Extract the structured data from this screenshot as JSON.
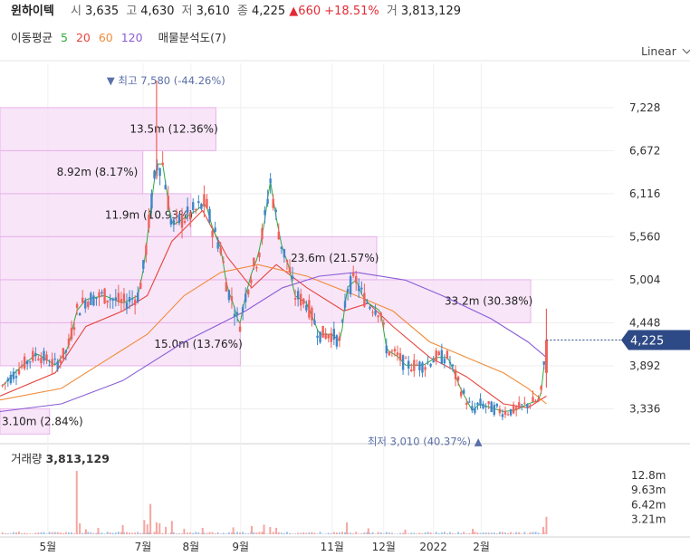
{
  "header": {
    "name": "윈하이텍",
    "open_label": "시",
    "open": "3,635",
    "high_label": "고",
    "high": "4,630",
    "low_label": "저",
    "low": "3,610",
    "close_label": "종",
    "close": "4,225",
    "change": "▲660",
    "change_pct": "+18.51%",
    "volume_label": "거",
    "volume": "3,813,129"
  },
  "ma_legend": {
    "label": "이동평균",
    "periods": [
      "5",
      "20",
      "60",
      "120"
    ],
    "colors": [
      "#2eaa3c",
      "#e8453c",
      "#f08c3a",
      "#8b5cd6"
    ],
    "volume_profile": "매물분석도(7)"
  },
  "scale_menu": "Linear",
  "chart_data": [
    {
      "type": "candlestick",
      "title": "",
      "y_ticks": [
        7228,
        6672,
        6116,
        5560,
        5004,
        4448,
        3892,
        3336
      ],
      "y_tick_labels": [
        "7,228",
        "6,672",
        "6,116",
        "5,560",
        "5,004",
        "4,448",
        "3,892",
        "3,336"
      ],
      "ylim": [
        2920,
        7800
      ],
      "x_ticks": [
        "5월",
        "7월",
        "8월",
        "9월",
        "11월",
        "12월",
        "2022",
        "2월"
      ],
      "x_tick_pos": [
        0.078,
        0.233,
        0.311,
        0.392,
        0.541,
        0.625,
        0.706,
        0.784
      ],
      "current_price": "4,225",
      "current_value": 4225,
      "max_annotation": "▼ 최고 7,580 (-44.26%)",
      "max_value": 7580,
      "min_annotation": "최저 3,010 (40.37%) ▲",
      "min_value": 3010,
      "volume_profile": [
        {
          "label": "3.10m (2.84%)",
          "low": 3010,
          "high": 3336,
          "share": 2.84
        },
        {
          "label": "15.0m (13.76%)",
          "low": 3892,
          "high": 4448,
          "share": 13.76
        },
        {
          "label": "33.2m (30.38%)",
          "low": 4448,
          "high": 5004,
          "share": 30.38
        },
        {
          "label": "23.6m (21.57%)",
          "low": 5004,
          "high": 5560,
          "share": 21.57
        },
        {
          "label": "11.9m (10.93%)",
          "low": 5560,
          "high": 6116,
          "share": 10.93
        },
        {
          "label": "8.92m (8.17%)",
          "low": 6116,
          "high": 6672,
          "share": 8.17
        },
        {
          "label": "13.5m (12.36%)",
          "low": 6672,
          "high": 7228,
          "share": 12.36
        }
      ],
      "price_path": [
        [
          0.0,
          3600
        ],
        [
          0.03,
          3850
        ],
        [
          0.06,
          4050
        ],
        [
          0.09,
          3900
        ],
        [
          0.11,
          4100
        ],
        [
          0.125,
          4600
        ],
        [
          0.14,
          4750
        ],
        [
          0.17,
          4800
        ],
        [
          0.2,
          4700
        ],
        [
          0.225,
          4800
        ],
        [
          0.235,
          5200
        ],
        [
          0.245,
          5900
        ],
        [
          0.255,
          6500
        ],
        [
          0.265,
          6500
        ],
        [
          0.28,
          5700
        ],
        [
          0.3,
          5800
        ],
        [
          0.32,
          5900
        ],
        [
          0.335,
          6000
        ],
        [
          0.345,
          5700
        ],
        [
          0.36,
          5400
        ],
        [
          0.37,
          4900
        ],
        [
          0.38,
          4700
        ],
        [
          0.39,
          4400
        ],
        [
          0.4,
          4800
        ],
        [
          0.41,
          5100
        ],
        [
          0.42,
          5300
        ],
        [
          0.43,
          5700
        ],
        [
          0.44,
          6300
        ],
        [
          0.45,
          5800
        ],
        [
          0.46,
          5400
        ],
        [
          0.47,
          5200
        ],
        [
          0.48,
          4800
        ],
        [
          0.5,
          4700
        ],
        [
          0.52,
          4300
        ],
        [
          0.54,
          4300
        ],
        [
          0.555,
          4200
        ],
        [
          0.565,
          4900
        ],
        [
          0.58,
          5000
        ],
        [
          0.59,
          4800
        ],
        [
          0.6,
          4700
        ],
        [
          0.62,
          4600
        ],
        [
          0.63,
          4100
        ],
        [
          0.65,
          4000
        ],
        [
          0.66,
          3900
        ],
        [
          0.69,
          3900
        ],
        [
          0.71,
          4000
        ],
        [
          0.73,
          4000
        ],
        [
          0.74,
          3800
        ],
        [
          0.75,
          3600
        ],
        [
          0.77,
          3300
        ],
        [
          0.78,
          3400
        ],
        [
          0.8,
          3350
        ],
        [
          0.82,
          3300
        ],
        [
          0.84,
          3320
        ],
        [
          0.86,
          3400
        ],
        [
          0.88,
          3450
        ],
        [
          0.885,
          3800
        ],
        [
          0.89,
          4225
        ]
      ],
      "ma": [
        {
          "period": "20",
          "path": [
            [
              0.0,
              3500
            ],
            [
              0.09,
              3800
            ],
            [
              0.14,
              4400
            ],
            [
              0.2,
              4600
            ],
            [
              0.24,
              4800
            ],
            [
              0.28,
              5500
            ],
            [
              0.33,
              5900
            ],
            [
              0.37,
              5300
            ],
            [
              0.41,
              4900
            ],
            [
              0.45,
              5200
            ],
            [
              0.5,
              4900
            ],
            [
              0.56,
              4600
            ],
            [
              0.6,
              4700
            ],
            [
              0.64,
              4400
            ],
            [
              0.7,
              4000
            ],
            [
              0.76,
              3750
            ],
            [
              0.82,
              3400
            ],
            [
              0.86,
              3350
            ],
            [
              0.89,
              3500
            ]
          ]
        },
        {
          "period": "60",
          "path": [
            [
              0.0,
              3450
            ],
            [
              0.1,
              3600
            ],
            [
              0.18,
              4000
            ],
            [
              0.24,
              4300
            ],
            [
              0.3,
              4800
            ],
            [
              0.36,
              5100
            ],
            [
              0.42,
              5200
            ],
            [
              0.5,
              5050
            ],
            [
              0.58,
              4800
            ],
            [
              0.64,
              4600
            ],
            [
              0.7,
              4200
            ],
            [
              0.76,
              4000
            ],
            [
              0.82,
              3800
            ],
            [
              0.86,
              3600
            ],
            [
              0.89,
              3400
            ]
          ]
        },
        {
          "period": "120",
          "path": [
            [
              0.0,
              3300
            ],
            [
              0.1,
              3400
            ],
            [
              0.2,
              3700
            ],
            [
              0.3,
              4200
            ],
            [
              0.4,
              4600
            ],
            [
              0.46,
              4900
            ],
            [
              0.52,
              5050
            ],
            [
              0.58,
              5100
            ],
            [
              0.66,
              5000
            ],
            [
              0.72,
              4800
            ],
            [
              0.8,
              4500
            ],
            [
              0.86,
              4200
            ],
            [
              0.89,
              4000
            ]
          ]
        }
      ]
    },
    {
      "type": "bar",
      "title": "거래량",
      "last_volume": "3,813,129",
      "y_ticks": [
        12.8,
        9.63,
        6.42,
        3.21
      ],
      "y_tick_labels": [
        "12.8m",
        "9.63m",
        "6.42m",
        "3.21m"
      ],
      "ylim": [
        0,
        14.4
      ],
      "unit": "m",
      "bars": [
        {
          "x": 0.125,
          "v": 13.8
        },
        {
          "x": 0.13,
          "v": 2.4
        },
        {
          "x": 0.14,
          "v": 1.1
        },
        {
          "x": 0.16,
          "v": 1.4
        },
        {
          "x": 0.2,
          "v": 2.0
        },
        {
          "x": 0.235,
          "v": 3.1
        },
        {
          "x": 0.24,
          "v": 2.2
        },
        {
          "x": 0.245,
          "v": 6.6
        },
        {
          "x": 0.255,
          "v": 2.6
        },
        {
          "x": 0.26,
          "v": 2.4
        },
        {
          "x": 0.27,
          "v": 1.6
        },
        {
          "x": 0.28,
          "v": 2.9
        },
        {
          "x": 0.3,
          "v": 1.2
        },
        {
          "x": 0.33,
          "v": 1.4
        },
        {
          "x": 0.38,
          "v": 1.5
        },
        {
          "x": 0.41,
          "v": 1.8
        },
        {
          "x": 0.43,
          "v": 2.1
        },
        {
          "x": 0.44,
          "v": 1.6
        },
        {
          "x": 0.45,
          "v": 1.4
        },
        {
          "x": 0.565,
          "v": 2.6
        },
        {
          "x": 0.6,
          "v": 1.3
        },
        {
          "x": 0.66,
          "v": 1.0
        },
        {
          "x": 0.77,
          "v": 1.2
        },
        {
          "x": 0.885,
          "v": 1.6
        },
        {
          "x": 0.89,
          "v": 3.8
        }
      ]
    }
  ]
}
